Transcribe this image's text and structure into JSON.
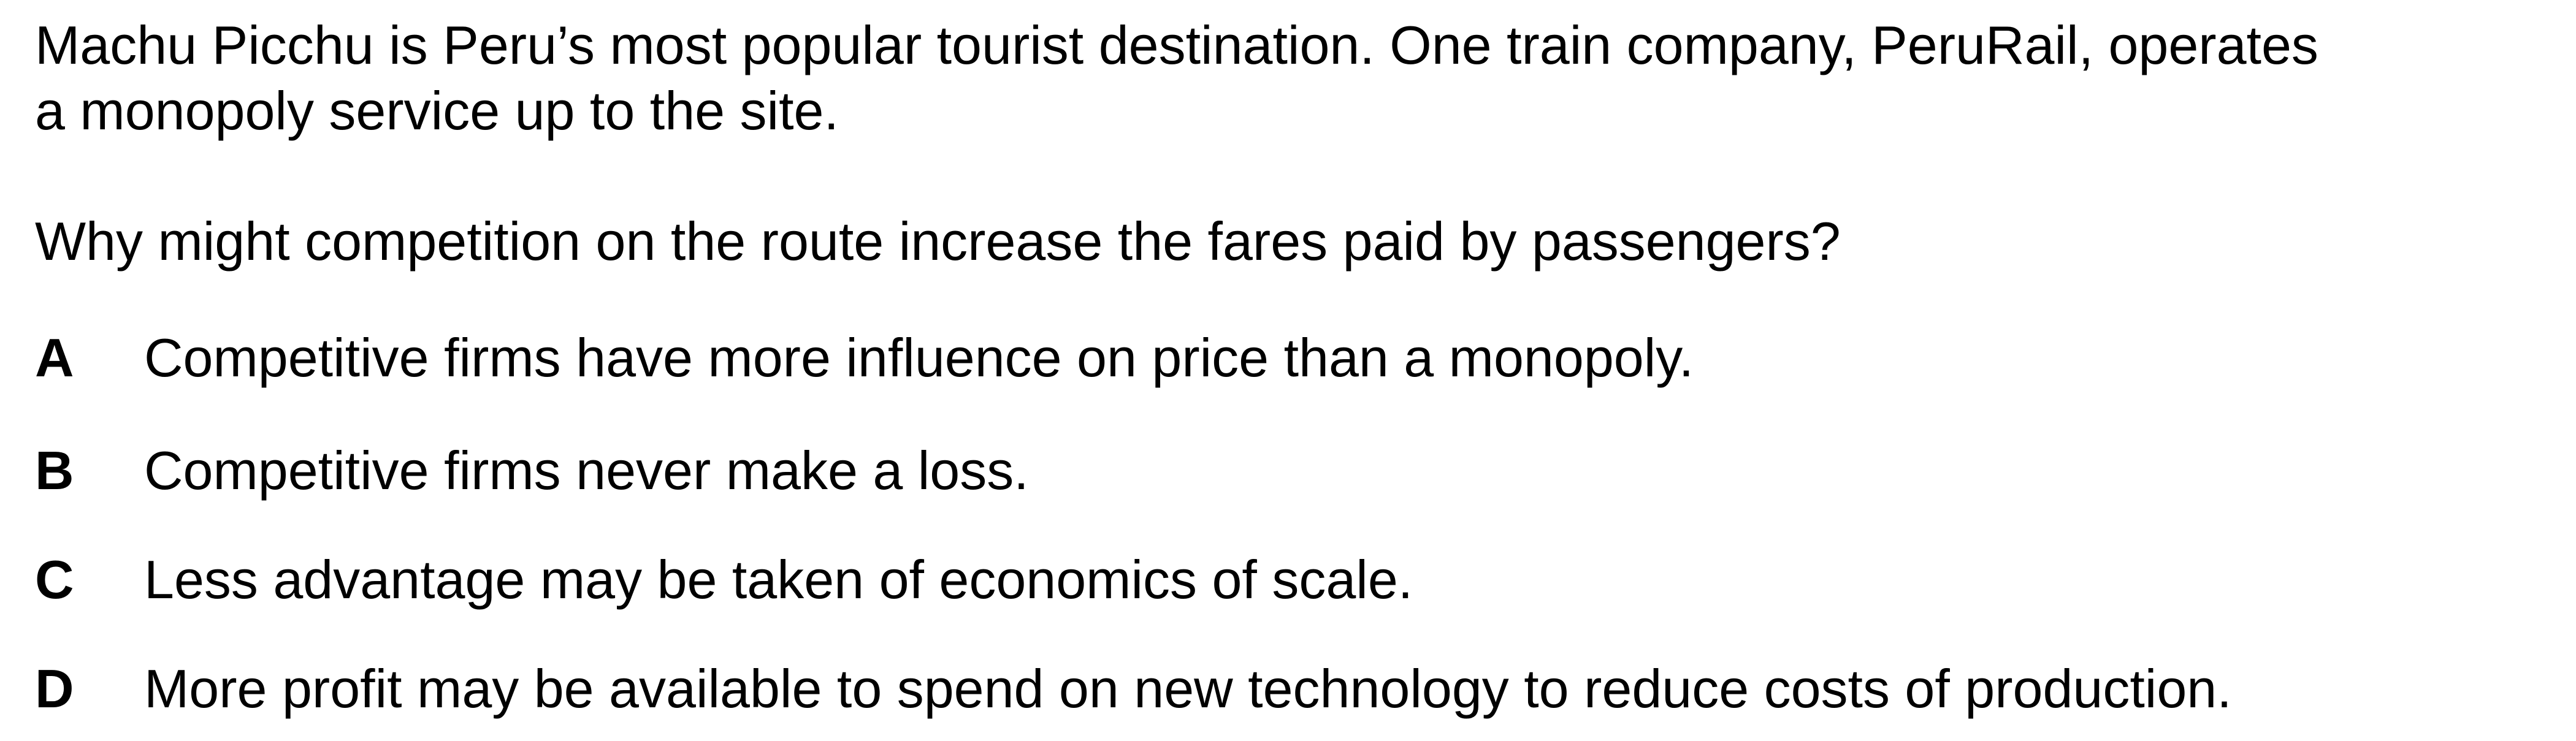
{
  "stem": {
    "line1": "Machu Picchu is Peru’s most popular tourist destination. One train company, PeruRail, operates",
    "line2": "a monopoly service up to the site."
  },
  "question": "Why might competition on the route increase the fares paid by passengers?",
  "options": [
    {
      "letter": "A",
      "text": "Competitive firms have more influence on price than a monopoly."
    },
    {
      "letter": "B",
      "text": "Competitive firms never make a loss."
    },
    {
      "letter": "C",
      "text": "Less advantage may be taken of economics of scale."
    },
    {
      "letter": "D",
      "text": "More profit may be available to spend on new technology to reduce costs of production."
    }
  ]
}
